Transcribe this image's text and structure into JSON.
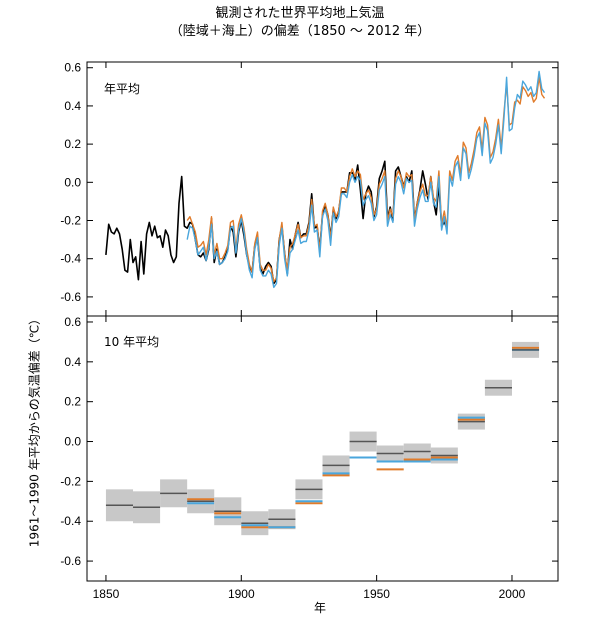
{
  "title_line1": "観測された世界平均地上気温",
  "title_line2": "（陸域＋海上）の偏差（1850 ～ 2012 年）",
  "ylabel": "1961～1990 年平均からの気温偏差（℃）",
  "xlabel": "年",
  "colors": {
    "black": "#000000",
    "orange": "#e07b2a",
    "blue": "#4aa6dc",
    "gray_band": "#c8c8c8",
    "gray_line": "#555555"
  },
  "chart_data": [
    {
      "type": "line",
      "title": "年平均",
      "xlim": [
        1843,
        2017
      ],
      "ylim": [
        -0.7,
        0.63
      ],
      "yticks": [
        -0.6,
        -0.4,
        -0.2,
        0.0,
        0.2,
        0.4,
        0.6
      ],
      "ytick_labels": [
        "-0.6",
        "-0.4",
        "-0.2",
        "0.0",
        "0.2",
        "0.4",
        "0.6"
      ],
      "series": [
        {
          "name": "black",
          "color": "#000000",
          "start": 1850,
          "values": [
            -0.38,
            -0.22,
            -0.26,
            -0.27,
            -0.24,
            -0.27,
            -0.35,
            -0.46,
            -0.47,
            -0.3,
            -0.42,
            -0.39,
            -0.51,
            -0.31,
            -0.48,
            -0.27,
            -0.21,
            -0.28,
            -0.23,
            -0.29,
            -0.28,
            -0.34,
            -0.25,
            -0.28,
            -0.38,
            -0.42,
            -0.39,
            -0.11,
            0.03,
            -0.23,
            -0.24,
            -0.21,
            -0.22,
            -0.3,
            -0.38,
            -0.39,
            -0.37,
            -0.41,
            -0.35,
            -0.19,
            -0.42,
            -0.35,
            -0.43,
            -0.42,
            -0.39,
            -0.35,
            -0.23,
            -0.26,
            -0.39,
            -0.26,
            -0.2,
            -0.28,
            -0.38,
            -0.44,
            -0.47,
            -0.33,
            -0.29,
            -0.45,
            -0.48,
            -0.44,
            -0.42,
            -0.44,
            -0.53,
            -0.51,
            -0.3,
            -0.23,
            -0.37,
            -0.48,
            -0.3,
            -0.35,
            -0.27,
            -0.21,
            -0.29,
            -0.27,
            -0.27,
            -0.21,
            -0.06,
            -0.24,
            -0.23,
            -0.35,
            -0.17,
            -0.12,
            -0.17,
            -0.29,
            -0.14,
            -0.19,
            -0.15,
            -0.05,
            -0.05,
            -0.05,
            0.05,
            0.05,
            0.01,
            0.09,
            -0.04,
            -0.19,
            -0.06,
            -0.02,
            -0.05,
            -0.18,
            -0.13,
            0.02,
            0.06,
            0.11,
            -0.19,
            -0.13,
            -0.2,
            0.06,
            0.08,
            0.03,
            -0.02,
            0.03,
            0.0,
            0.06,
            -0.2,
            -0.11,
            -0.04,
            0.06,
            -0.01,
            -0.09,
            0.03,
            -0.1,
            -0.17,
            -0.01,
            -0.23,
            -0.21,
            -0.24
          ]
        },
        {
          "name": "orange",
          "color": "#e07b2a",
          "start": 1880,
          "values": [
            -0.2,
            -0.18,
            -0.22,
            -0.26,
            -0.34,
            -0.33,
            -0.31,
            -0.38,
            -0.3,
            -0.18,
            -0.38,
            -0.32,
            -0.4,
            -0.4,
            -0.37,
            -0.33,
            -0.21,
            -0.2,
            -0.35,
            -0.22,
            -0.17,
            -0.24,
            -0.35,
            -0.43,
            -0.47,
            -0.32,
            -0.26,
            -0.43,
            -0.46,
            -0.46,
            -0.43,
            -0.45,
            -0.52,
            -0.5,
            -0.3,
            -0.21,
            -0.37,
            -0.46,
            -0.34,
            -0.32,
            -0.27,
            -0.22,
            -0.29,
            -0.28,
            -0.28,
            -0.22,
            -0.09,
            -0.23,
            -0.22,
            -0.36,
            -0.15,
            -0.11,
            -0.17,
            -0.3,
            -0.13,
            -0.18,
            -0.15,
            -0.03,
            -0.03,
            -0.05,
            0.03,
            0.07,
            0.03,
            0.06,
            0.04,
            -0.09,
            -0.06,
            -0.04,
            -0.08,
            -0.17,
            -0.14,
            -0.01,
            0.02,
            0.06,
            -0.2,
            -0.14,
            -0.18,
            0.02,
            0.06,
            0.03,
            -0.03,
            0.05,
            0.03,
            0.04,
            -0.2,
            -0.11,
            -0.05,
            -0.01,
            -0.07,
            -0.07,
            0.03,
            -0.08,
            -0.1,
            0.06,
            -0.22,
            -0.15,
            -0.24,
            0.06,
            0.01,
            0.11,
            0.14,
            0.04,
            0.21,
            0.18,
            0.05,
            0.1,
            0.17,
            0.26,
            0.29,
            0.17,
            0.34,
            0.3,
            0.13,
            0.16,
            0.23,
            0.33,
            0.18,
            0.36,
            0.52,
            0.3,
            0.31,
            0.42,
            0.43,
            0.41,
            0.5,
            0.48,
            0.45,
            0.47,
            0.42,
            0.44,
            0.55,
            0.46,
            0.44
          ]
        },
        {
          "name": "blue",
          "color": "#4aa6dc",
          "start": 1880,
          "values": [
            -0.3,
            -0.23,
            -0.24,
            -0.3,
            -0.38,
            -0.36,
            -0.34,
            -0.41,
            -0.34,
            -0.22,
            -0.4,
            -0.36,
            -0.43,
            -0.42,
            -0.4,
            -0.36,
            -0.24,
            -0.23,
            -0.37,
            -0.25,
            -0.19,
            -0.26,
            -0.38,
            -0.46,
            -0.5,
            -0.35,
            -0.29,
            -0.46,
            -0.49,
            -0.49,
            -0.46,
            -0.48,
            -0.55,
            -0.53,
            -0.33,
            -0.24,
            -0.4,
            -0.49,
            -0.37,
            -0.35,
            -0.3,
            -0.25,
            -0.32,
            -0.31,
            -0.31,
            -0.25,
            -0.12,
            -0.26,
            -0.25,
            -0.39,
            -0.18,
            -0.14,
            -0.2,
            -0.33,
            -0.16,
            -0.21,
            -0.18,
            -0.06,
            -0.06,
            -0.08,
            0.0,
            0.04,
            0.0,
            0.03,
            0.01,
            -0.12,
            -0.09,
            -0.07,
            -0.11,
            -0.2,
            -0.17,
            -0.04,
            -0.01,
            0.03,
            -0.23,
            -0.17,
            -0.21,
            -0.01,
            0.03,
            0.0,
            -0.06,
            0.02,
            0.0,
            0.01,
            -0.23,
            -0.14,
            -0.08,
            -0.04,
            -0.1,
            -0.1,
            0.0,
            -0.11,
            -0.13,
            0.03,
            -0.25,
            -0.18,
            -0.27,
            0.03,
            -0.02,
            0.08,
            0.11,
            0.01,
            0.18,
            0.15,
            0.02,
            0.07,
            0.14,
            0.23,
            0.26,
            0.14,
            0.31,
            0.27,
            0.1,
            0.13,
            0.2,
            0.3,
            0.15,
            0.33,
            0.55,
            0.27,
            0.28,
            0.39,
            0.46,
            0.44,
            0.53,
            0.51,
            0.48,
            0.5,
            0.45,
            0.47,
            0.58,
            0.49,
            0.47
          ]
        }
      ]
    },
    {
      "type": "bar",
      "title": "10 年平均",
      "xlim": [
        1843,
        2017
      ],
      "ylim": [
        -0.7,
        0.63
      ],
      "yticks": [
        -0.6,
        -0.4,
        -0.2,
        0.0,
        0.2,
        0.4,
        0.6
      ],
      "ytick_labels": [
        "-0.6",
        "-0.4",
        "-0.2",
        "0.0",
        "0.2",
        "0.4",
        "0.6"
      ],
      "xticks": [
        1850,
        1900,
        1950,
        2000
      ],
      "xtick_labels": [
        "1850",
        "1900",
        "1950",
        "2000"
      ],
      "decades": [
        {
          "start": 1850,
          "end": 1860,
          "mean": -0.32,
          "unc": 0.08,
          "orange": null,
          "blue": null
        },
        {
          "start": 1860,
          "end": 1870,
          "mean": -0.33,
          "unc": 0.08,
          "orange": null,
          "blue": null
        },
        {
          "start": 1870,
          "end": 1880,
          "mean": -0.26,
          "unc": 0.07,
          "orange": null,
          "blue": null
        },
        {
          "start": 1880,
          "end": 1890,
          "mean": -0.3,
          "unc": 0.06,
          "orange": -0.29,
          "blue": -0.31
        },
        {
          "start": 1890,
          "end": 1900,
          "mean": -0.35,
          "unc": 0.07,
          "orange": -0.36,
          "blue": -0.38
        },
        {
          "start": 1900,
          "end": 1910,
          "mean": -0.41,
          "unc": 0.06,
          "orange": -0.43,
          "blue": -0.42
        },
        {
          "start": 1910,
          "end": 1920,
          "mean": -0.39,
          "unc": 0.05,
          "orange": -0.43,
          "blue": -0.43
        },
        {
          "start": 1920,
          "end": 1930,
          "mean": -0.24,
          "unc": 0.05,
          "orange": -0.31,
          "blue": -0.3
        },
        {
          "start": 1930,
          "end": 1940,
          "mean": -0.12,
          "unc": 0.05,
          "orange": -0.17,
          "blue": -0.16
        },
        {
          "start": 1940,
          "end": 1950,
          "mean": 0.0,
          "unc": 0.05,
          "orange": -0.08,
          "blue": -0.08
        },
        {
          "start": 1950,
          "end": 1960,
          "mean": -0.06,
          "unc": 0.04,
          "orange": -0.14,
          "blue": -0.1
        },
        {
          "start": 1960,
          "end": 1970,
          "mean": -0.05,
          "unc": 0.04,
          "orange": -0.09,
          "blue": -0.1
        },
        {
          "start": 1970,
          "end": 1980,
          "mean": -0.07,
          "unc": 0.04,
          "orange": -0.08,
          "blue": -0.09
        },
        {
          "start": 1980,
          "end": 1990,
          "mean": 0.1,
          "unc": 0.04,
          "orange": 0.11,
          "blue": 0.12
        },
        {
          "start": 1990,
          "end": 2000,
          "mean": 0.27,
          "unc": 0.04,
          "orange": null,
          "blue": null
        },
        {
          "start": 2000,
          "end": 2010,
          "mean": 0.46,
          "unc": 0.04,
          "orange": 0.47,
          "blue": 0.46
        }
      ]
    }
  ]
}
